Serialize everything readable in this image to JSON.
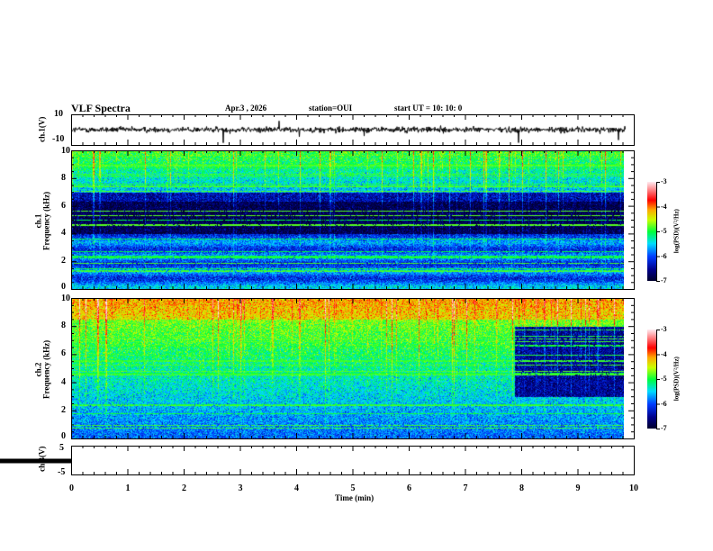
{
  "header": {
    "title": "VLF Spectra",
    "date": "Apr.3  , 2026",
    "station": "station=OUI",
    "start": "start  UT =   10: 10: 0"
  },
  "colors": {
    "axis": "#000000",
    "waveform": "#000000"
  },
  "chart_data": [
    {
      "type": "line",
      "name": "ch1-waveform",
      "ylabel": "ch.1(V)",
      "ylim": [
        -10,
        10
      ],
      "yticks": [
        "10",
        "-10"
      ],
      "xlim": [
        0,
        10
      ],
      "data_end_min": 9.85,
      "baseline": 0,
      "noise_amplitude": 1.5
    },
    {
      "type": "heatmap",
      "name": "ch1-spectrogram",
      "ylabel": "ch.1\nFrequency (kHz)",
      "ylabel_lines": [
        "ch.1",
        "Frequency (kHz)"
      ],
      "ylim": [
        0,
        10
      ],
      "yticks": [
        "0",
        "2",
        "4",
        "6",
        "8",
        "10"
      ],
      "xlim": [
        0,
        10
      ],
      "colorbar": {
        "label": "log(PSD)(V²/Hz)",
        "range": [
          -7,
          -3
        ],
        "ticks": [
          "-3",
          "-4",
          "-5",
          "-6",
          "-7"
        ]
      },
      "description_bands": [
        {
          "freq_khz": [
            0,
            4
          ],
          "level": -5.8
        },
        {
          "freq_khz": [
            4,
            7
          ],
          "level": -6.8
        },
        {
          "freq_khz": [
            7,
            10
          ],
          "level": -5.2
        }
      ]
    },
    {
      "type": "heatmap",
      "name": "ch2-spectrogram",
      "ylabel_lines": [
        "ch.2",
        "Frequency (kHz)"
      ],
      "ylim": [
        0,
        10
      ],
      "yticks": [
        "0",
        "2",
        "4",
        "6",
        "8",
        "10"
      ],
      "xlim": [
        0,
        10
      ],
      "colorbar": {
        "label": "log(PSD)(V²/Hz)",
        "range": [
          -7,
          -3
        ],
        "ticks": [
          "-3",
          "-4",
          "-5",
          "-6",
          "-7"
        ]
      },
      "description_bands": [
        {
          "freq_khz": [
            0,
            8
          ],
          "level": -5.6
        },
        {
          "freq_khz": [
            8,
            10
          ],
          "level": -4.6
        }
      ],
      "quiet_region": {
        "time_min": [
          7.9,
          9.85
        ],
        "freq_khz": [
          3,
          8
        ],
        "level": -6.6
      }
    },
    {
      "type": "line",
      "name": "ch3-waveform",
      "ylabel": "ch.3(V)",
      "ylim": [
        -5,
        5
      ],
      "yticks": [
        "5",
        "-5"
      ],
      "xlim": [
        0,
        10
      ],
      "constant_value": -1.5,
      "xlabel": "Time (min)",
      "xticks": [
        "0",
        "1",
        "2",
        "3",
        "4",
        "5",
        "6",
        "7",
        "8",
        "9",
        "10"
      ]
    }
  ]
}
